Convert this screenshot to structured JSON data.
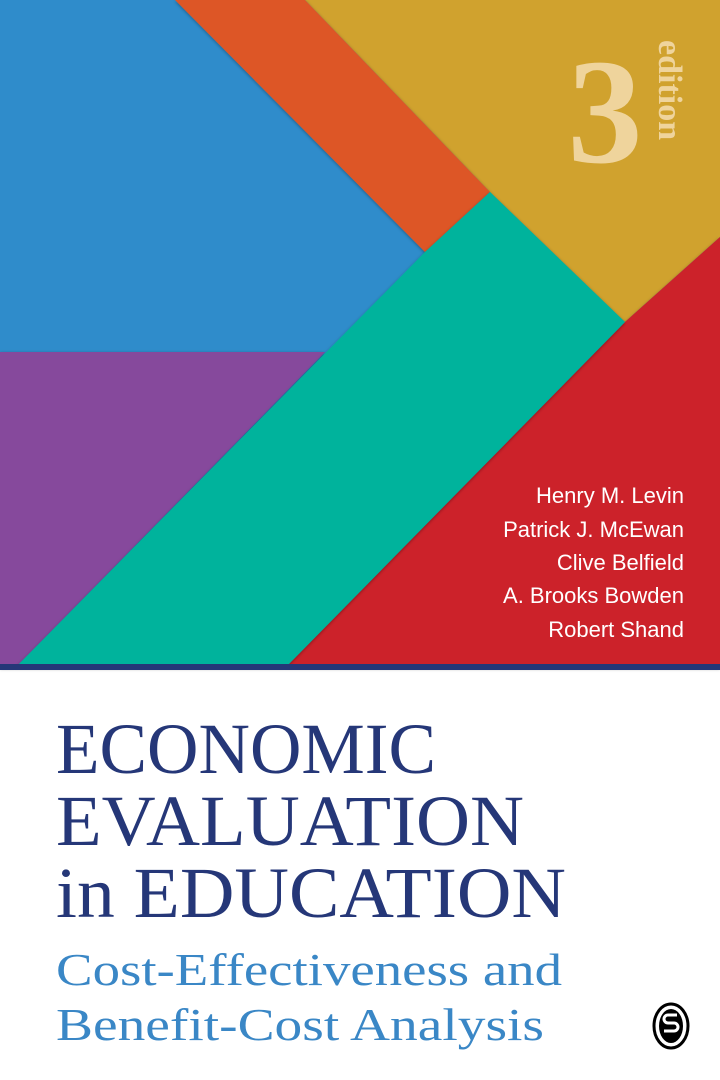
{
  "cover": {
    "edition_number": "3",
    "edition_label": "edition",
    "authors": [
      "Henry M. Levin",
      "Patrick J. McEwan",
      "Clive Belfield",
      "A. Brooks Bowden",
      "Robert Shand"
    ],
    "title_lines": [
      "ECONOMIC",
      "EVALUATION",
      "in EDUCATION"
    ],
    "subtitle_lines": [
      "Cost-Effectiveness and",
      "Benefit-Cost Analysis"
    ],
    "publisher_logo": "S",
    "colors": {
      "blue": "#2f8ccb",
      "orange": "#dd5627",
      "gold": "#d0a22e",
      "teal": "#00b39c",
      "purple": "#864a9c",
      "red": "#cc202a",
      "navy": "#253778",
      "subtitle_blue": "#3a87c6",
      "edition": "#efd49c"
    }
  }
}
